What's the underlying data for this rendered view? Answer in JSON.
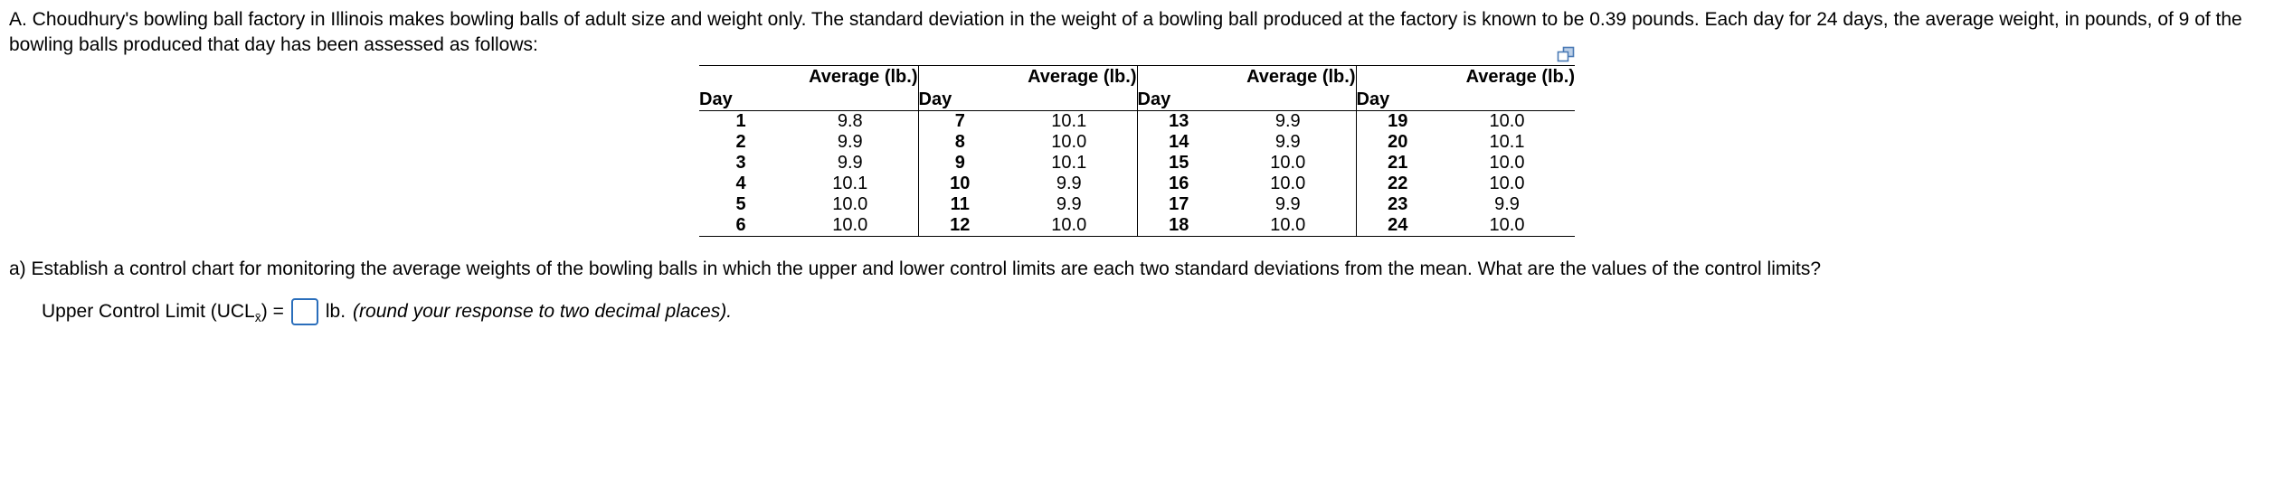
{
  "intro": "A. Choudhury's bowling ball factory in Illinois makes bowling balls of adult size and weight only. The standard deviation in the weight of a bowling ball produced at the factory is known to be 0.39 pounds. Each day for 24 days, the average weight, in pounds, of 9 of the bowling balls produced that day has been assessed as follows:",
  "table": {
    "headers": {
      "day": "Day",
      "avg": "Average (lb.)"
    },
    "groups": [
      {
        "days": [
          "1",
          "2",
          "3",
          "4",
          "5",
          "6"
        ],
        "avgs": [
          "9.8",
          "9.9",
          "9.9",
          "10.1",
          "10.0",
          "10.0"
        ]
      },
      {
        "days": [
          "7",
          "8",
          "9",
          "10",
          "11",
          "12"
        ],
        "avgs": [
          "10.1",
          "10.0",
          "10.1",
          "9.9",
          "9.9",
          "10.0"
        ]
      },
      {
        "days": [
          "13",
          "14",
          "15",
          "16",
          "17",
          "18"
        ],
        "avgs": [
          "9.9",
          "9.9",
          "10.0",
          "10.0",
          "9.9",
          "10.0"
        ]
      },
      {
        "days": [
          "19",
          "20",
          "21",
          "22",
          "23",
          "24"
        ],
        "avgs": [
          "10.0",
          "10.1",
          "10.0",
          "10.0",
          "9.9",
          "10.0"
        ]
      }
    ]
  },
  "question_a": "a) Establish a control chart for monitoring the average weights of the bowling balls in which the upper and lower control limits are each two standard deviations from the mean. What are the values of the control limits?",
  "answer_line": {
    "label_prefix": "Upper Control Limit (UCL",
    "subscript": "x̄",
    "label_suffix": ") =",
    "input_value": "",
    "unit": "lb.",
    "note": "(round your response to two decimal places)."
  },
  "colors": {
    "input_border": "#2a6ebb",
    "copy_icon": "#4a7ab5",
    "text": "#000000",
    "background": "#ffffff"
  }
}
